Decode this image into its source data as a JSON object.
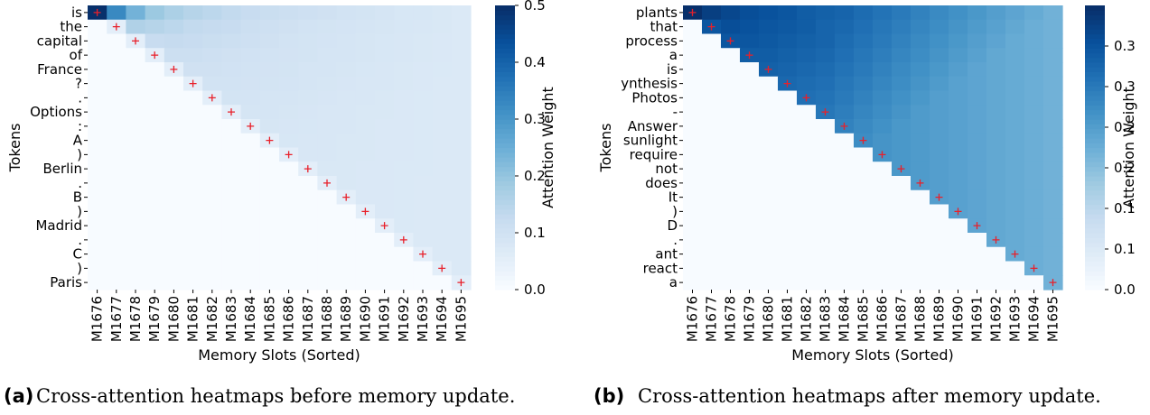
{
  "figures": [
    {
      "caption_tag": "(a)",
      "caption_text": "Cross-attention heatmaps before memory update."
    },
    {
      "caption_tag": "(b)",
      "caption_text": "Cross-attention heatmaps after memory update."
    }
  ],
  "chart_data": [
    {
      "type": "heatmap",
      "panel": "a",
      "xlabel": "Memory Slots (Sorted)",
      "ylabel": "Tokens",
      "colorbar_label": "Attention Weight",
      "colormap": "Blues",
      "clim": [
        0.0,
        0.5
      ],
      "colorbar_ticks": [
        "0.0",
        "0.1",
        "0.2",
        "0.3",
        "0.4",
        "0.5"
      ],
      "x_ticks": [
        "M1676",
        "M1677",
        "M1678",
        "M1679",
        "M1680",
        "M1681",
        "M1682",
        "M1683",
        "M1684",
        "M1685",
        "M1686",
        "M1687",
        "M1688",
        "M1689",
        "M1690",
        "M1691",
        "M1692",
        "M1693",
        "M1694",
        "M1695"
      ],
      "y_ticks": [
        "is",
        "the",
        "capital",
        "of",
        "France",
        "?",
        ".",
        "Options",
        ":",
        "A",
        ")",
        "Berlin",
        ".",
        "B",
        ")",
        "Madrid",
        ".",
        "C",
        ")",
        "Paris"
      ],
      "markers": "red + on the diagonal (row i, column i)",
      "matrix": [
        [
          0.5,
          0.33,
          0.24,
          0.19,
          0.165,
          0.15,
          0.14,
          0.13,
          0.12,
          0.115,
          0.11,
          0.105,
          0.1,
          0.095,
          0.09,
          0.085,
          0.08,
          0.08,
          0.075,
          0.07
        ],
        [
          0,
          0.05,
          0.16,
          0.15,
          0.14,
          0.13,
          0.125,
          0.12,
          0.11,
          0.105,
          0.1,
          0.095,
          0.09,
          0.088,
          0.085,
          0.083,
          0.08,
          0.078,
          0.075,
          0.07
        ],
        [
          0,
          0,
          0.05,
          0.12,
          0.125,
          0.12,
          0.115,
          0.11,
          0.105,
          0.1,
          0.095,
          0.09,
          0.088,
          0.085,
          0.083,
          0.08,
          0.078,
          0.075,
          0.073,
          0.07
        ],
        [
          0,
          0,
          0,
          0.05,
          0.11,
          0.11,
          0.105,
          0.1,
          0.097,
          0.095,
          0.092,
          0.09,
          0.087,
          0.085,
          0.083,
          0.08,
          0.078,
          0.075,
          0.073,
          0.07
        ],
        [
          0,
          0,
          0,
          0,
          0.05,
          0.1,
          0.1,
          0.097,
          0.095,
          0.092,
          0.09,
          0.087,
          0.085,
          0.083,
          0.08,
          0.078,
          0.076,
          0.074,
          0.072,
          0.07
        ],
        [
          0,
          0,
          0,
          0,
          0,
          0.05,
          0.095,
          0.094,
          0.092,
          0.09,
          0.088,
          0.085,
          0.083,
          0.081,
          0.079,
          0.077,
          0.075,
          0.073,
          0.071,
          0.07
        ],
        [
          0,
          0,
          0,
          0,
          0,
          0,
          0.05,
          0.09,
          0.089,
          0.087,
          0.085,
          0.083,
          0.081,
          0.079,
          0.077,
          0.075,
          0.074,
          0.072,
          0.071,
          0.07
        ],
        [
          0,
          0,
          0,
          0,
          0,
          0,
          0,
          0.05,
          0.087,
          0.085,
          0.083,
          0.081,
          0.079,
          0.078,
          0.076,
          0.075,
          0.073,
          0.072,
          0.071,
          0.07
        ],
        [
          0,
          0,
          0,
          0,
          0,
          0,
          0,
          0,
          0.05,
          0.083,
          0.082,
          0.08,
          0.078,
          0.077,
          0.075,
          0.074,
          0.073,
          0.072,
          0.071,
          0.07
        ],
        [
          0,
          0,
          0,
          0,
          0,
          0,
          0,
          0,
          0,
          0.05,
          0.08,
          0.079,
          0.078,
          0.076,
          0.075,
          0.074,
          0.073,
          0.072,
          0.071,
          0.07
        ],
        [
          0,
          0,
          0,
          0,
          0,
          0,
          0,
          0,
          0,
          0,
          0.05,
          0.078,
          0.077,
          0.076,
          0.075,
          0.074,
          0.073,
          0.072,
          0.071,
          0.07
        ],
        [
          0,
          0,
          0,
          0,
          0,
          0,
          0,
          0,
          0,
          0,
          0,
          0.05,
          0.076,
          0.075,
          0.074,
          0.073,
          0.072,
          0.072,
          0.071,
          0.07
        ],
        [
          0,
          0,
          0,
          0,
          0,
          0,
          0,
          0,
          0,
          0,
          0,
          0,
          0.05,
          0.075,
          0.074,
          0.073,
          0.072,
          0.071,
          0.071,
          0.07
        ],
        [
          0,
          0,
          0,
          0,
          0,
          0,
          0,
          0,
          0,
          0,
          0,
          0,
          0,
          0.05,
          0.074,
          0.073,
          0.072,
          0.071,
          0.071,
          0.07
        ],
        [
          0,
          0,
          0,
          0,
          0,
          0,
          0,
          0,
          0,
          0,
          0,
          0,
          0,
          0,
          0.05,
          0.073,
          0.072,
          0.071,
          0.07,
          0.07
        ],
        [
          0,
          0,
          0,
          0,
          0,
          0,
          0,
          0,
          0,
          0,
          0,
          0,
          0,
          0,
          0,
          0.05,
          0.072,
          0.071,
          0.07,
          0.07
        ],
        [
          0,
          0,
          0,
          0,
          0,
          0,
          0,
          0,
          0,
          0,
          0,
          0,
          0,
          0,
          0,
          0,
          0.05,
          0.071,
          0.07,
          0.07
        ],
        [
          0,
          0,
          0,
          0,
          0,
          0,
          0,
          0,
          0,
          0,
          0,
          0,
          0,
          0,
          0,
          0,
          0,
          0.05,
          0.07,
          0.07
        ],
        [
          0,
          0,
          0,
          0,
          0,
          0,
          0,
          0,
          0,
          0,
          0,
          0,
          0,
          0,
          0,
          0,
          0,
          0,
          0.05,
          0.07
        ],
        [
          0,
          0,
          0,
          0,
          0,
          0,
          0,
          0,
          0,
          0,
          0,
          0,
          0,
          0,
          0,
          0,
          0,
          0,
          0,
          0.05
        ]
      ]
    },
    {
      "type": "heatmap",
      "panel": "b",
      "xlabel": "Memory Slots (Sorted)",
      "ylabel": "Tokens",
      "colorbar_label": "Attention Weight",
      "colormap": "Blues",
      "clim": [
        0.0,
        0.35
      ],
      "colorbar_ticks": [
        "0.0",
        "0.1",
        "0.1",
        "0.2",
        "0.2",
        "0.3",
        "0.3"
      ],
      "colorbar_tick_values": [
        0.0,
        0.05,
        0.1,
        0.15,
        0.2,
        0.25,
        0.3
      ],
      "x_ticks": [
        "M1676",
        "M1677",
        "M1678",
        "M1679",
        "M1680",
        "M1681",
        "M1682",
        "M1683",
        "M1684",
        "M1685",
        "M1686",
        "M1687",
        "M1688",
        "M1689",
        "M1690",
        "M1691",
        "M1692",
        "M1693",
        "M1694",
        "M1695"
      ],
      "y_ticks": [
        "plants",
        "that",
        "process",
        "a",
        "is",
        "ynthesis",
        "Photos",
        "-",
        "Answer",
        "sunlight",
        "require",
        "not",
        "does",
        "It",
        ")",
        "D",
        ".",
        "ant",
        "react",
        "a"
      ],
      "markers": "red + on the diagonal (row i, column i)",
      "matrix": [
        [
          0.35,
          0.33,
          0.32,
          0.31,
          0.305,
          0.3,
          0.29,
          0.285,
          0.28,
          0.27,
          0.26,
          0.25,
          0.24,
          0.23,
          0.22,
          0.21,
          0.2,
          0.19,
          0.18,
          0.17
        ],
        [
          0,
          0.3,
          0.31,
          0.305,
          0.3,
          0.295,
          0.29,
          0.28,
          0.275,
          0.265,
          0.255,
          0.245,
          0.235,
          0.225,
          0.215,
          0.205,
          0.195,
          0.185,
          0.175,
          0.17
        ],
        [
          0,
          0,
          0.3,
          0.3,
          0.295,
          0.29,
          0.285,
          0.28,
          0.27,
          0.26,
          0.25,
          0.24,
          0.23,
          0.22,
          0.21,
          0.2,
          0.19,
          0.18,
          0.175,
          0.17
        ],
        [
          0,
          0,
          0,
          0.29,
          0.29,
          0.285,
          0.28,
          0.275,
          0.265,
          0.255,
          0.245,
          0.235,
          0.225,
          0.215,
          0.205,
          0.195,
          0.185,
          0.18,
          0.175,
          0.17
        ],
        [
          0,
          0,
          0,
          0,
          0.285,
          0.28,
          0.275,
          0.27,
          0.26,
          0.25,
          0.24,
          0.23,
          0.22,
          0.21,
          0.2,
          0.19,
          0.185,
          0.18,
          0.175,
          0.17
        ],
        [
          0,
          0,
          0,
          0,
          0,
          0.275,
          0.27,
          0.265,
          0.255,
          0.245,
          0.235,
          0.225,
          0.215,
          0.205,
          0.195,
          0.19,
          0.185,
          0.18,
          0.175,
          0.17
        ],
        [
          0,
          0,
          0,
          0,
          0,
          0,
          0.265,
          0.26,
          0.25,
          0.24,
          0.23,
          0.22,
          0.21,
          0.2,
          0.195,
          0.19,
          0.185,
          0.18,
          0.175,
          0.17
        ],
        [
          0,
          0,
          0,
          0,
          0,
          0,
          0,
          0.255,
          0.245,
          0.235,
          0.225,
          0.215,
          0.205,
          0.2,
          0.195,
          0.19,
          0.185,
          0.18,
          0.175,
          0.17
        ],
        [
          0,
          0,
          0,
          0,
          0,
          0,
          0,
          0,
          0.24,
          0.23,
          0.22,
          0.21,
          0.205,
          0.2,
          0.195,
          0.19,
          0.185,
          0.18,
          0.175,
          0.17
        ],
        [
          0,
          0,
          0,
          0,
          0,
          0,
          0,
          0,
          0,
          0.225,
          0.215,
          0.21,
          0.205,
          0.2,
          0.195,
          0.19,
          0.185,
          0.18,
          0.175,
          0.17
        ],
        [
          0,
          0,
          0,
          0,
          0,
          0,
          0,
          0,
          0,
          0,
          0.215,
          0.21,
          0.205,
          0.2,
          0.195,
          0.19,
          0.185,
          0.18,
          0.175,
          0.17
        ],
        [
          0,
          0,
          0,
          0,
          0,
          0,
          0,
          0,
          0,
          0,
          0,
          0.21,
          0.205,
          0.2,
          0.195,
          0.19,
          0.185,
          0.18,
          0.175,
          0.17
        ],
        [
          0,
          0,
          0,
          0,
          0,
          0,
          0,
          0,
          0,
          0,
          0,
          0,
          0.205,
          0.2,
          0.195,
          0.19,
          0.185,
          0.18,
          0.175,
          0.17
        ],
        [
          0,
          0,
          0,
          0,
          0,
          0,
          0,
          0,
          0,
          0,
          0,
          0,
          0,
          0.2,
          0.195,
          0.19,
          0.185,
          0.18,
          0.175,
          0.17
        ],
        [
          0,
          0,
          0,
          0,
          0,
          0,
          0,
          0,
          0,
          0,
          0,
          0,
          0,
          0,
          0.195,
          0.19,
          0.185,
          0.18,
          0.175,
          0.17
        ],
        [
          0,
          0,
          0,
          0,
          0,
          0,
          0,
          0,
          0,
          0,
          0,
          0,
          0,
          0,
          0,
          0.19,
          0.185,
          0.18,
          0.175,
          0.17
        ],
        [
          0,
          0,
          0,
          0,
          0,
          0,
          0,
          0,
          0,
          0,
          0,
          0,
          0,
          0,
          0,
          0,
          0.185,
          0.18,
          0.175,
          0.17
        ],
        [
          0,
          0,
          0,
          0,
          0,
          0,
          0,
          0,
          0,
          0,
          0,
          0,
          0,
          0,
          0,
          0,
          0,
          0.18,
          0.175,
          0.17
        ],
        [
          0,
          0,
          0,
          0,
          0,
          0,
          0,
          0,
          0,
          0,
          0,
          0,
          0,
          0,
          0,
          0,
          0,
          0,
          0.175,
          0.17
        ],
        [
          0,
          0,
          0,
          0,
          0,
          0,
          0,
          0,
          0,
          0,
          0,
          0,
          0,
          0,
          0,
          0,
          0,
          0,
          0,
          0.17
        ]
      ]
    }
  ]
}
